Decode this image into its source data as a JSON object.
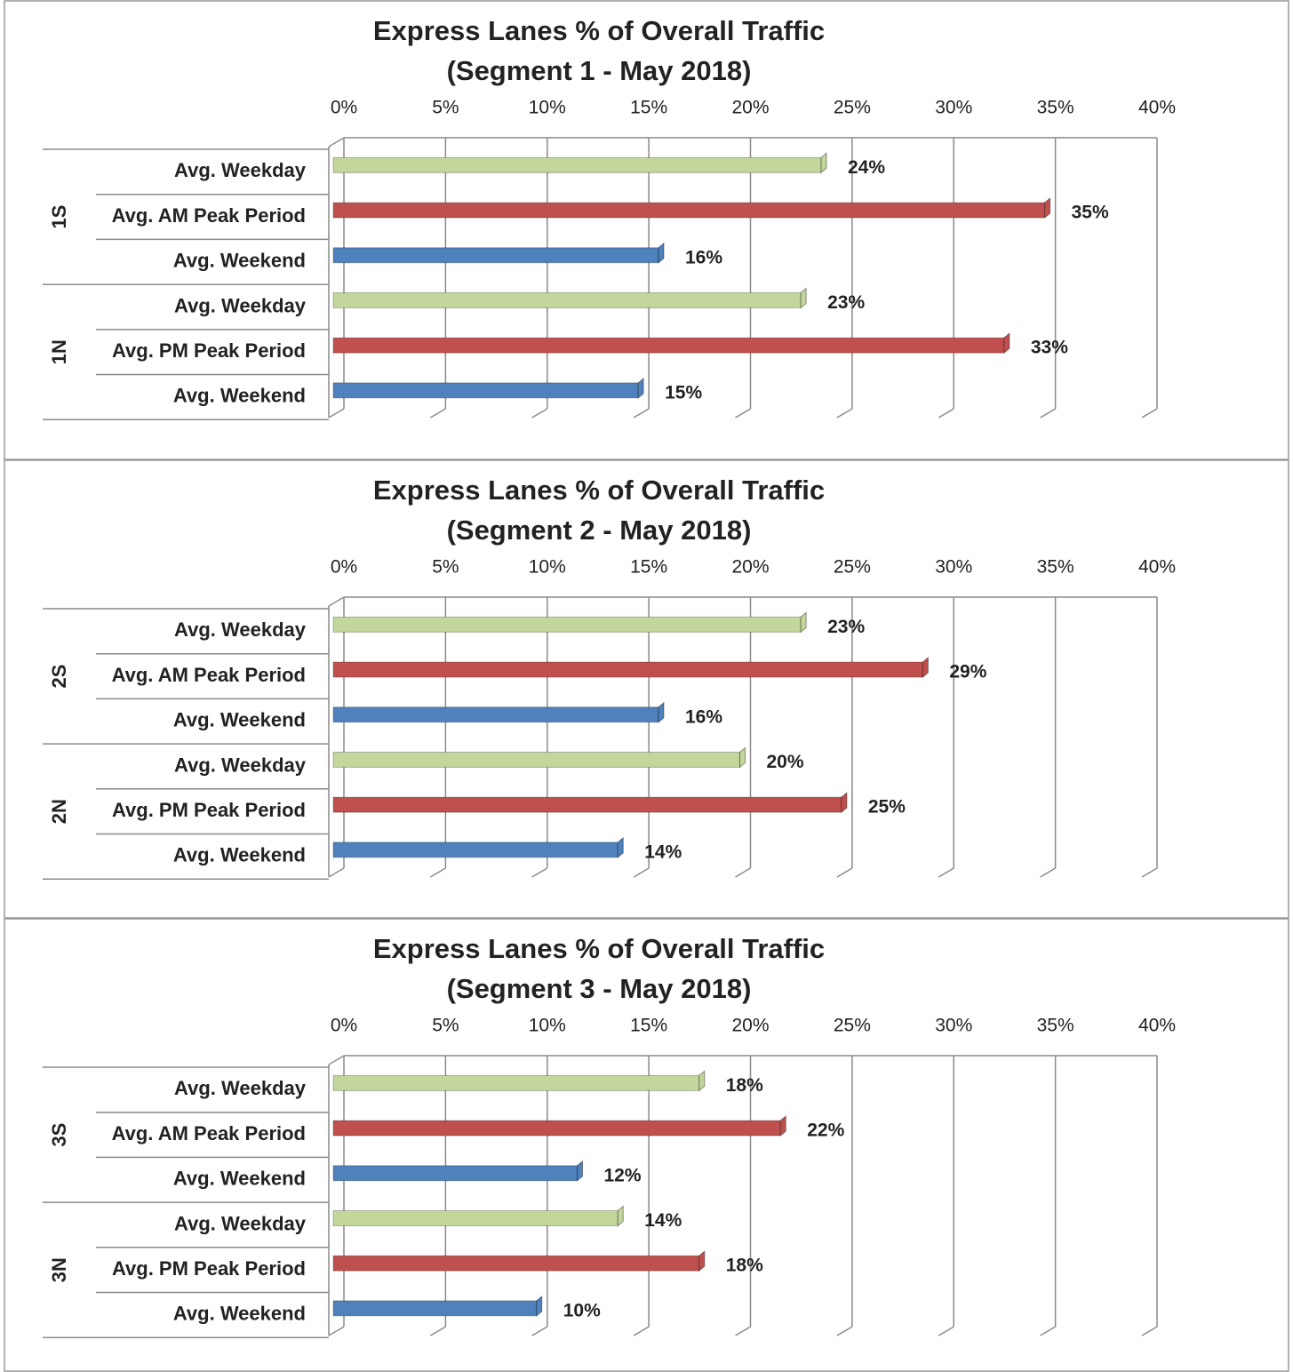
{
  "chart_data": [
    {
      "type": "bar",
      "title": "Express Lanes % of Overall Traffic",
      "subtitle": "(Segment 1 - May 2018)",
      "groups": [
        "1S",
        "1N"
      ],
      "categories": [
        "Avg. Weekday",
        "Avg. AM Peak Period",
        "Avg. Weekend",
        "Avg. Weekday",
        "Avg. PM Peak Period",
        "Avg. Weekend"
      ],
      "values": [
        24,
        35,
        16,
        23,
        33,
        15
      ],
      "value_labels": [
        "24%",
        "35%",
        "16%",
        "23%",
        "33%",
        "15%"
      ],
      "colors": [
        "#c3d69b",
        "#c0504d",
        "#4f81bd",
        "#c3d69b",
        "#c0504d",
        "#4f81bd"
      ],
      "xlim": [
        0,
        40
      ],
      "xticks": [
        {
          "value": 0,
          "label": "0%"
        },
        {
          "value": 5,
          "label": "5%"
        },
        {
          "value": 10,
          "label": "10%"
        },
        {
          "value": 15,
          "label": "15%"
        },
        {
          "value": 20,
          "label": "20%"
        },
        {
          "value": 25,
          "label": "25%"
        },
        {
          "value": 30,
          "label": "30%"
        },
        {
          "value": 35,
          "label": "35%"
        },
        {
          "value": 40,
          "label": "40%"
        }
      ],
      "grid": true
    },
    {
      "type": "bar",
      "title": "Express Lanes % of Overall Traffic",
      "subtitle": "(Segment 2 - May 2018)",
      "groups": [
        "2S",
        "2N"
      ],
      "categories": [
        "Avg. Weekday",
        "Avg. AM Peak Period",
        "Avg. Weekend",
        "Avg. Weekday",
        "Avg. PM Peak Period",
        "Avg. Weekend"
      ],
      "values": [
        23,
        29,
        16,
        20,
        25,
        14
      ],
      "value_labels": [
        "23%",
        "29%",
        "16%",
        "20%",
        "25%",
        "14%"
      ],
      "colors": [
        "#c3d69b",
        "#c0504d",
        "#4f81bd",
        "#c3d69b",
        "#c0504d",
        "#4f81bd"
      ],
      "xlim": [
        0,
        40
      ],
      "xticks": [
        {
          "value": 0,
          "label": "0%"
        },
        {
          "value": 5,
          "label": "5%"
        },
        {
          "value": 10,
          "label": "10%"
        },
        {
          "value": 15,
          "label": "15%"
        },
        {
          "value": 20,
          "label": "20%"
        },
        {
          "value": 25,
          "label": "25%"
        },
        {
          "value": 30,
          "label": "30%"
        },
        {
          "value": 35,
          "label": "35%"
        },
        {
          "value": 40,
          "label": "40%"
        }
      ],
      "grid": true
    },
    {
      "type": "bar",
      "title": "Express Lanes % of Overall Traffic",
      "subtitle": "(Segment 3 - May 2018)",
      "groups": [
        "3S",
        "3N"
      ],
      "categories": [
        "Avg. Weekday",
        "Avg. AM Peak Period",
        "Avg. Weekend",
        "Avg. Weekday",
        "Avg. PM Peak Period",
        "Avg. Weekend"
      ],
      "values": [
        18,
        22,
        12,
        14,
        18,
        10
      ],
      "value_labels": [
        "18%",
        "22%",
        "12%",
        "14%",
        "18%",
        "10%"
      ],
      "colors": [
        "#c3d69b",
        "#c0504d",
        "#4f81bd",
        "#c3d69b",
        "#c0504d",
        "#4f81bd"
      ],
      "xlim": [
        0,
        40
      ],
      "xticks": [
        {
          "value": 0,
          "label": "0%"
        },
        {
          "value": 5,
          "label": "5%"
        },
        {
          "value": 10,
          "label": "10%"
        },
        {
          "value": 15,
          "label": "15%"
        },
        {
          "value": 20,
          "label": "20%"
        },
        {
          "value": 25,
          "label": "25%"
        },
        {
          "value": 30,
          "label": "30%"
        },
        {
          "value": 35,
          "label": "35%"
        },
        {
          "value": 40,
          "label": "40%"
        }
      ],
      "grid": true
    }
  ]
}
